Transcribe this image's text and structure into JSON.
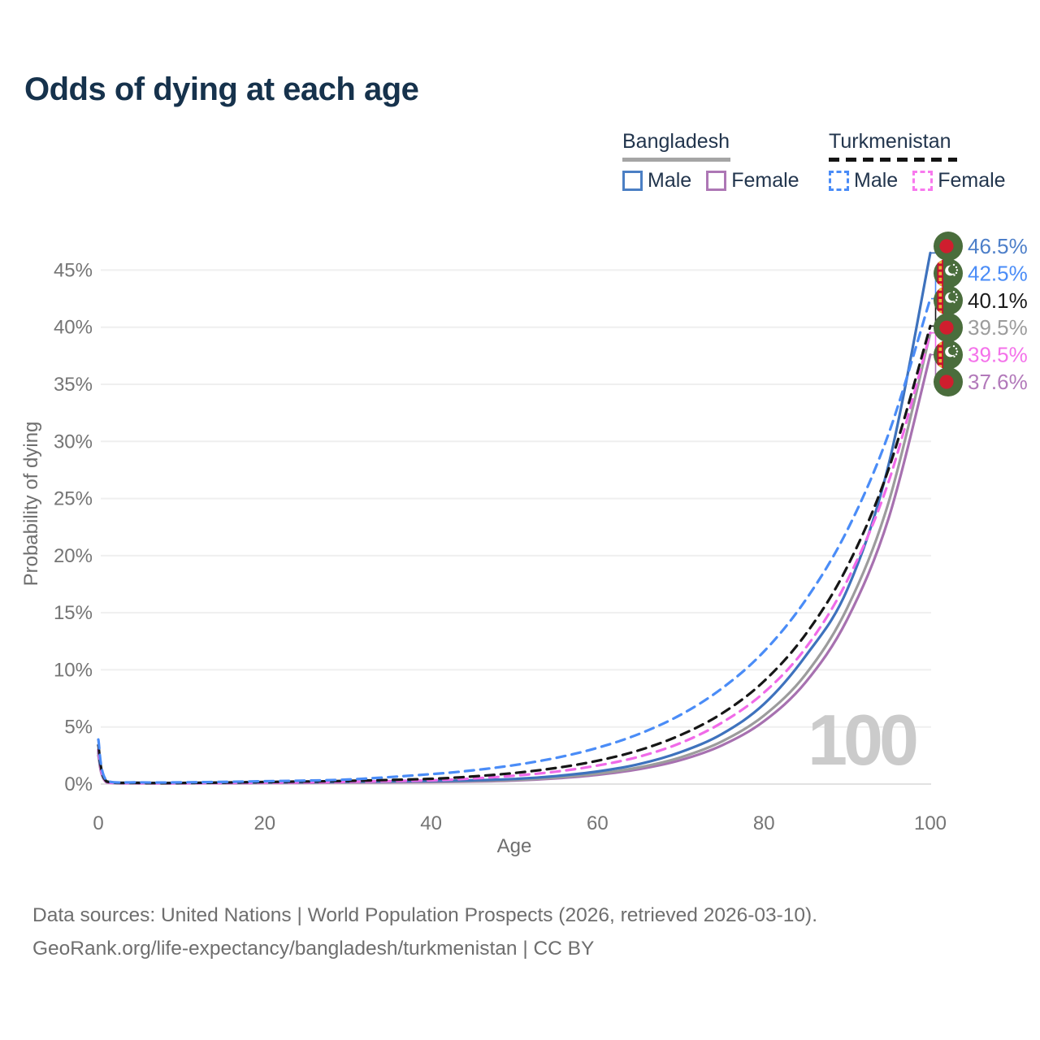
{
  "title": "Odds of dying at each age",
  "legend": {
    "groups": [
      {
        "country": "Bangladesh",
        "line_style": "solid",
        "underline_color": "#a5a5a5",
        "items": [
          {
            "label": "Male",
            "color": "#4b7fc4"
          },
          {
            "label": "Female",
            "color": "#ad77b5"
          }
        ]
      },
      {
        "country": "Turkmenistan",
        "line_style": "dashed",
        "underline_color": "#141414",
        "items": [
          {
            "label": "Male",
            "color": "#4a8cf7"
          },
          {
            "label": "Female",
            "color": "#f879ee"
          }
        ]
      }
    ]
  },
  "chart_data": {
    "type": "line",
    "xlabel": "Age",
    "ylabel": "Probability of dying",
    "x_ticks": [
      0,
      20,
      40,
      60,
      80,
      100
    ],
    "y_ticks_percent": [
      0,
      5,
      10,
      15,
      20,
      25,
      30,
      35,
      40,
      45
    ],
    "xlim": [
      0,
      100
    ],
    "ylim_percent": [
      0,
      47.5
    ],
    "grid": "horizontal",
    "watermark": "100",
    "watermark_color": "#cbcbcb",
    "grid_color": "#efefef",
    "zero_line_color": "#e2e2e2",
    "axis_text_color": "#757575",
    "flag_colors": {
      "green": "#4a6d3c",
      "bangladesh_red": "#cf1e2e",
      "turkmenistan_red": "#c8102e",
      "ornament_gold": "#e9b53a",
      "white": "#ffffff"
    },
    "ages": [
      0,
      1,
      5,
      10,
      20,
      30,
      40,
      45,
      50,
      55,
      60,
      65,
      70,
      75,
      80,
      85,
      90,
      95,
      100
    ],
    "series": [
      {
        "name": "Bangladesh Male",
        "country": "Bangladesh",
        "sex": "Male",
        "line_style": "solid",
        "color": "#3e72bd",
        "label_color": "#4d7fc9",
        "flag": "bangladesh",
        "end_label": "46.5%",
        "values_percent": [
          2.9,
          0.25,
          0.12,
          0.1,
          0.15,
          0.2,
          0.28,
          0.33,
          0.45,
          0.7,
          1.1,
          1.75,
          2.8,
          4.4,
          7.0,
          11.2,
          17.0,
          28.0,
          46.5
        ]
      },
      {
        "name": "Turkmenistan Male",
        "country": "Turkmenistan",
        "sex": "Male",
        "line_style": "dashed",
        "color": "#4a8cf7",
        "label_color": "#4a8cf7",
        "flag": "turkmenistan",
        "end_label": "42.5%",
        "values_percent": [
          3.9,
          0.3,
          0.15,
          0.15,
          0.25,
          0.4,
          0.87,
          1.2,
          1.66,
          2.29,
          3.17,
          4.39,
          6.07,
          8.4,
          11.6,
          16.1,
          22.2,
          30.7,
          42.5
        ]
      },
      {
        "name": "Turkmenistan Both sexes",
        "country": "Turkmenistan",
        "sex": "Both",
        "line_style": "dashed",
        "color": "#161616",
        "label_color": "#1a1a1a",
        "flag": "turkmenistan",
        "end_label": "40.1%",
        "values_percent": [
          3.4,
          0.22,
          0.1,
          0.09,
          0.18,
          0.28,
          0.46,
          0.67,
          0.97,
          1.41,
          2.04,
          2.96,
          4.3,
          6.2,
          9.0,
          13.1,
          19.0,
          27.6,
          40.1
        ]
      },
      {
        "name": "Bangladesh Both sexes",
        "country": "Bangladesh",
        "sex": "Both",
        "line_style": "solid",
        "color": "#9c9c9c",
        "label_color": "#9c9c9c",
        "flag": "bangladesh",
        "end_label": "39.5%",
        "values_percent": [
          2.7,
          0.2,
          0.09,
          0.08,
          0.12,
          0.17,
          0.22,
          0.27,
          0.36,
          0.57,
          0.91,
          1.46,
          2.34,
          3.75,
          6.0,
          9.6,
          15.4,
          24.7,
          39.5
        ]
      },
      {
        "name": "Turkmenistan Female",
        "country": "Turkmenistan",
        "sex": "Female",
        "line_style": "dashed",
        "color": "#f06ae8",
        "label_color": "#f472ea",
        "flag": "turkmenistan",
        "end_label": "39.5%",
        "values_percent": [
          3.0,
          0.18,
          0.08,
          0.07,
          0.13,
          0.2,
          0.33,
          0.49,
          0.73,
          1.09,
          1.62,
          2.4,
          3.6,
          5.4,
          8.0,
          11.9,
          17.8,
          26.5,
          39.5
        ]
      },
      {
        "name": "Bangladesh Female",
        "country": "Bangladesh",
        "sex": "Female",
        "line_style": "solid",
        "color": "#a771b0",
        "label_color": "#b279ba",
        "flag": "bangladesh",
        "end_label": "37.6%",
        "values_percent": [
          2.5,
          0.15,
          0.07,
          0.06,
          0.09,
          0.13,
          0.17,
          0.22,
          0.31,
          0.5,
          0.81,
          1.3,
          2.1,
          3.4,
          5.5,
          8.9,
          14.4,
          23.3,
          37.6
        ]
      }
    ]
  },
  "footer": {
    "line1": "Data sources: United Nations | World Population Prospects (2026, retrieved 2026-03-10).",
    "line2": "GeoRank.org/life-expectancy/bangladesh/turkmenistan | CC BY"
  }
}
